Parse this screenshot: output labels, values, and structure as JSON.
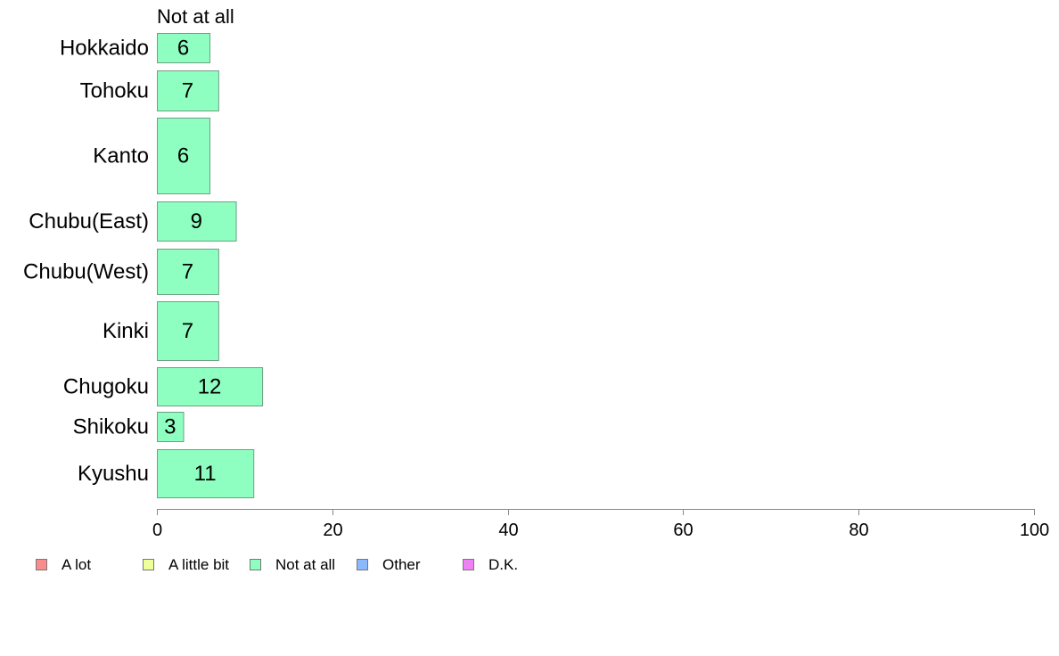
{
  "chart_data": {
    "type": "bar",
    "orientation": "horizontal",
    "series_label_top": "Not at all",
    "categories": [
      "Hokkaido",
      "Tohoku",
      "Kanto",
      "Chubu(East)",
      "Chubu(West)",
      "Kinki",
      "Chugoku",
      "Shikoku",
      "Kyushu"
    ],
    "series": [
      {
        "name": "Not at all",
        "values": [
          6,
          7,
          6,
          9,
          7,
          7,
          12,
          3,
          11
        ],
        "color": "#8effc0"
      }
    ],
    "xlim": [
      0,
      100
    ],
    "xticks": [
      0,
      20,
      40,
      60,
      80,
      100
    ],
    "grid": false,
    "legend_position": "bottom-left",
    "legend": [
      {
        "label": "A lot",
        "color": "#fb8c8c"
      },
      {
        "label": "A little bit",
        "color": "#efff9a"
      },
      {
        "label": "Not at all",
        "color": "#8effc0"
      },
      {
        "label": "Other",
        "color": "#8cb8ff"
      },
      {
        "label": "D.K.",
        "color": "#ee82f5"
      }
    ]
  }
}
